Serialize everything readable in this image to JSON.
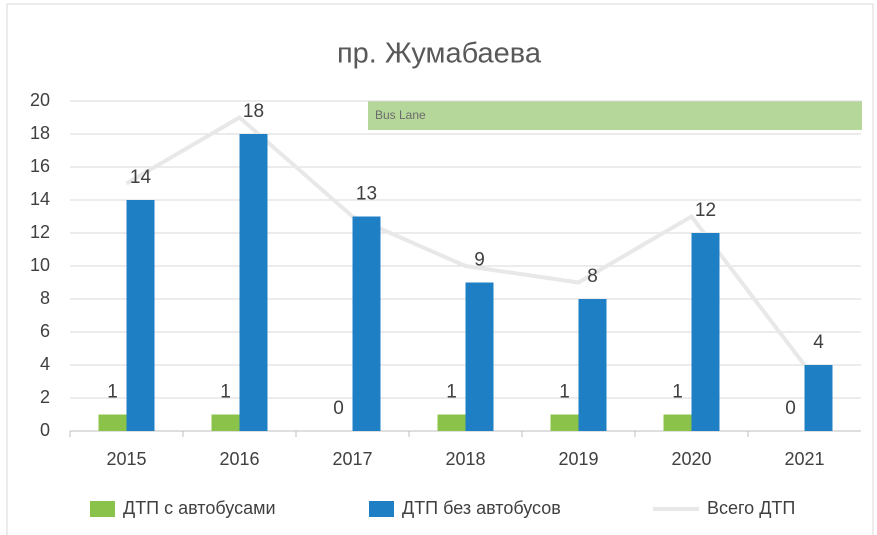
{
  "chart_data": {
    "type": "bar",
    "title": "пр. Жумабаева",
    "categories": [
      "2015",
      "2016",
      "2017",
      "2018",
      "2019",
      "2020",
      "2021"
    ],
    "series": [
      {
        "name": "ДТП с автобусами",
        "color": "#8bc34a",
        "values": [
          1,
          1,
          0,
          1,
          1,
          1,
          0
        ]
      },
      {
        "name": "ДТП без автобусов",
        "color": "#1f7fc4",
        "values": [
          14,
          18,
          13,
          9,
          8,
          12,
          4
        ]
      },
      {
        "name": "Всего ДТП",
        "type": "line",
        "color": "#e8e8e8",
        "values": [
          15,
          19,
          13,
          10,
          9,
          13,
          4
        ]
      }
    ],
    "annotation": "Bus Lane",
    "ylim": [
      0,
      20
    ],
    "yticks": [
      0,
      2,
      4,
      6,
      8,
      10,
      12,
      14,
      16,
      18,
      20
    ],
    "grid": true,
    "legend": "bottom"
  }
}
